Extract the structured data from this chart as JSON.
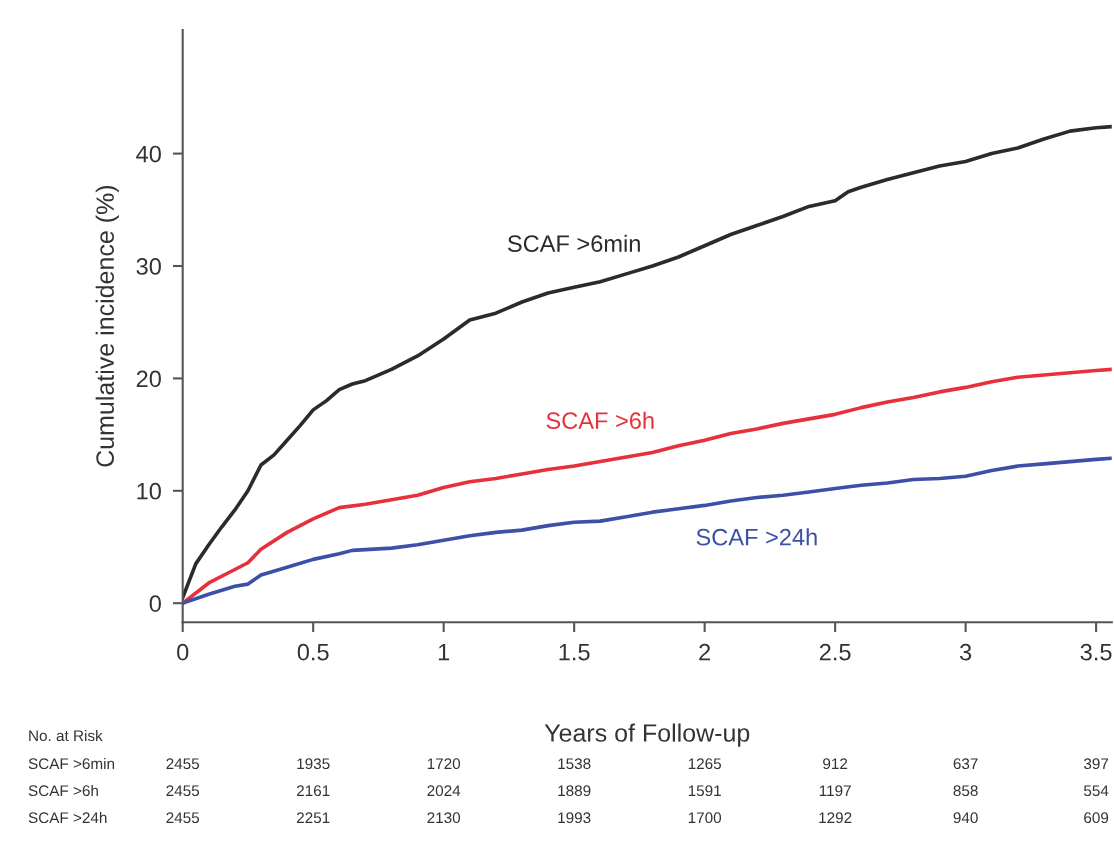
{
  "chart_data": {
    "type": "line",
    "xlabel": "Years of Follow-up",
    "ylabel": "Cumulative incidence (%)",
    "xlim": [
      0,
      3.56
    ],
    "ylim": [
      -1.7,
      51
    ],
    "xticks": [
      0,
      0.5,
      1,
      1.5,
      2,
      2.5,
      3,
      3.5
    ],
    "yticks": [
      0,
      10,
      20,
      30,
      40
    ],
    "grid": false,
    "legend": false,
    "series": [
      {
        "name": "SCAF >6min",
        "color": "#2b2b2b",
        "x": [
          0,
          0.05,
          0.1,
          0.15,
          0.2,
          0.25,
          0.3,
          0.35,
          0.4,
          0.45,
          0.5,
          0.55,
          0.6,
          0.65,
          0.7,
          0.8,
          0.9,
          1.0,
          1.1,
          1.2,
          1.3,
          1.4,
          1.5,
          1.6,
          1.7,
          1.8,
          1.9,
          2.0,
          2.1,
          2.2,
          2.3,
          2.4,
          2.5,
          2.55,
          2.6,
          2.7,
          2.8,
          2.9,
          3.0,
          3.1,
          3.2,
          3.3,
          3.4,
          3.5,
          3.56
        ],
        "values": [
          0.5,
          3.5,
          5.2,
          6.8,
          8.3,
          10,
          12.3,
          13.2,
          14.5,
          15.8,
          17.2,
          18,
          19,
          19.5,
          19.8,
          20.8,
          22,
          23.5,
          25.2,
          25.8,
          26.8,
          27.6,
          28.1,
          28.6,
          29.3,
          30,
          30.8,
          31.8,
          32.8,
          33.6,
          34.4,
          35.3,
          35.8,
          36.6,
          37,
          37.7,
          38.3,
          38.9,
          39.3,
          40,
          40.5,
          41.3,
          42,
          42.3,
          42.4
        ]
      },
      {
        "name": "SCAF >6h",
        "color": "#e8303a",
        "x": [
          0,
          0.1,
          0.2,
          0.25,
          0.3,
          0.4,
          0.5,
          0.6,
          0.7,
          0.8,
          0.9,
          1.0,
          1.1,
          1.2,
          1.3,
          1.4,
          1.5,
          1.6,
          1.7,
          1.8,
          1.9,
          2.0,
          2.1,
          2.2,
          2.3,
          2.4,
          2.5,
          2.6,
          2.7,
          2.8,
          2.9,
          3.0,
          3.1,
          3.2,
          3.3,
          3.4,
          3.5,
          3.56
        ],
        "values": [
          0,
          1.8,
          3,
          3.6,
          4.8,
          6.3,
          7.5,
          8.5,
          8.8,
          9.2,
          9.6,
          10.3,
          10.8,
          11.1,
          11.5,
          11.9,
          12.2,
          12.6,
          13,
          13.4,
          14,
          14.5,
          15.1,
          15.5,
          16,
          16.4,
          16.8,
          17.4,
          17.9,
          18.3,
          18.8,
          19.2,
          19.7,
          20.1,
          20.3,
          20.5,
          20.7,
          20.8
        ]
      },
      {
        "name": "SCAF >24h",
        "color": "#3c50a8",
        "x": [
          0,
          0.1,
          0.2,
          0.25,
          0.3,
          0.4,
          0.5,
          0.6,
          0.65,
          0.8,
          0.9,
          1.0,
          1.1,
          1.2,
          1.3,
          1.4,
          1.5,
          1.6,
          1.7,
          1.8,
          1.9,
          2.0,
          2.1,
          2.2,
          2.3,
          2.4,
          2.5,
          2.6,
          2.7,
          2.8,
          2.9,
          3.0,
          3.1,
          3.2,
          3.3,
          3.4,
          3.5,
          3.56
        ],
        "values": [
          0,
          0.8,
          1.5,
          1.7,
          2.5,
          3.2,
          3.9,
          4.4,
          4.7,
          4.9,
          5.2,
          5.6,
          6,
          6.3,
          6.5,
          6.9,
          7.2,
          7.3,
          7.7,
          8.1,
          8.4,
          8.7,
          9.1,
          9.4,
          9.6,
          9.9,
          10.2,
          10.5,
          10.7,
          11,
          11.1,
          11.3,
          11.8,
          12.2,
          12.4,
          12.6,
          12.8,
          12.9
        ]
      }
    ],
    "annotations": [
      "No. at Risk",
      "SCAF >6min",
      "2455",
      "1935",
      "1720",
      "1538",
      "1265",
      "912",
      "637",
      "397",
      "SCAF >6h",
      "2455",
      "2161",
      "2024",
      "1889",
      "1591",
      "1197",
      "858",
      "554",
      "SCAF >24h",
      "2455",
      "2251",
      "2130",
      "1993",
      "1700",
      "1292",
      "940",
      "609"
    ]
  }
}
